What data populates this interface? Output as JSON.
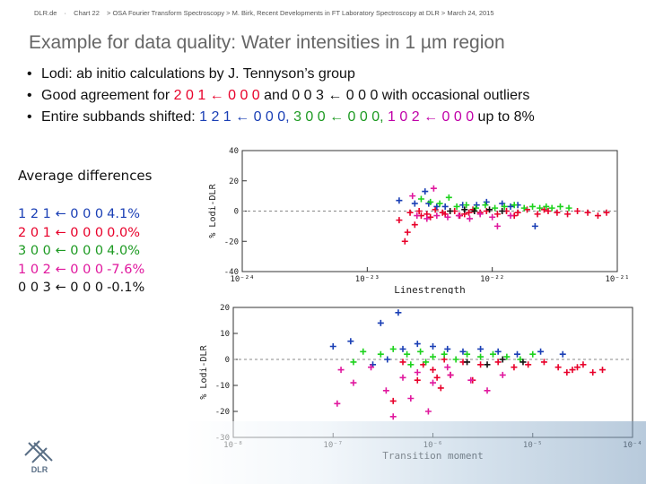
{
  "header": {
    "org": "DLR.de",
    "chart": "Chart 22",
    "source": "> OSA Fourier Transform Spectroscopy > M. Birk, Recent Developments in FT Laboratory Spectroscopy at DLR > March 24, 2015"
  },
  "title": "Example for data quality: Water intensities in 1 µm region",
  "bullets": [
    {
      "parts": [
        {
          "text": "Lodi: ab initio calculations by J. Tennyson’s group",
          "color": ""
        }
      ]
    },
    {
      "parts": [
        {
          "text": "Good agreement for ",
          "color": ""
        },
        {
          "text": "2 0 1 ← 0 0 0",
          "color": "red"
        },
        {
          "text": " and 0 0 3 ← 0 0 0 with occasional outliers",
          "color": ""
        }
      ]
    },
    {
      "parts": [
        {
          "text": "Entire subbands shifted: ",
          "color": ""
        },
        {
          "text": "1 2 1 ← 0 0 0,",
          "color": "blue"
        },
        {
          "text": "  ",
          "color": ""
        },
        {
          "text": "3 0 0 ← 0 0 0,",
          "color": "green"
        },
        {
          "text": "  ",
          "color": ""
        },
        {
          "text": "1 0 2 ← 0 0 0",
          "color": "magenta"
        },
        {
          "text": "  up to 8%",
          "color": ""
        }
      ]
    }
  ],
  "average": {
    "title": "Average differences",
    "rows": [
      {
        "band": "1 2 1 ← 0 0 0",
        "value": "4.1%",
        "color": "blue"
      },
      {
        "band": "2 0 1 ← 0 0 0",
        "value": "0.0%",
        "color": "red"
      },
      {
        "band": "3 0 0 ← 0 0 0",
        "value": "4.0%",
        "color": "green"
      },
      {
        "band": "1 0 2 ← 0 0 0",
        "value": "-7.6%",
        "color": "magenta"
      },
      {
        "band": "0 0 3 ← 0 0 0",
        "value": "-0.1%",
        "color": "black"
      }
    ]
  },
  "colors": {
    "red": "#e8002a",
    "blue": "#1a3fb5",
    "green": "#1dd21d",
    "magenta": "#e0189e",
    "black": "#111111"
  },
  "chart_data": [
    {
      "type": "scatter",
      "xlabel": "Linestrength",
      "ylabel": "% Lodi-DLR",
      "xscale": "log",
      "xlim": [
        1e-24,
        1e-21
      ],
      "ylim": [
        -40,
        40
      ],
      "xticks": [
        "10⁻²⁴",
        "10⁻²³",
        "10⁻²²",
        "10⁻²¹"
      ],
      "yticks": [
        "-40",
        "-20",
        "0",
        "20",
        "40"
      ],
      "series": [
        {
          "color": "red",
          "points": [
            [
              2.2e-23,
              -1
            ],
            [
              2.6e-23,
              0
            ],
            [
              3e-23,
              -2
            ],
            [
              3.5e-23,
              1
            ],
            [
              4e-23,
              -1
            ],
            [
              5e-23,
              0
            ],
            [
              6e-23,
              -2
            ],
            [
              7e-23,
              1
            ],
            [
              8e-23,
              -1
            ],
            [
              9e-23,
              0
            ],
            [
              1.1e-22,
              -2
            ],
            [
              1.3e-22,
              0
            ],
            [
              1.6e-22,
              -1
            ],
            [
              1.9e-22,
              1
            ],
            [
              2.3e-22,
              -2
            ],
            [
              2.8e-22,
              0
            ],
            [
              3.3e-22,
              -1
            ],
            [
              4e-22,
              -2
            ],
            [
              4.8e-22,
              0
            ],
            [
              5.8e-22,
              -1
            ],
            [
              7e-22,
              -3
            ],
            [
              8.2e-22,
              -1
            ],
            [
              1.8e-23,
              -6
            ],
            [
              2.1e-23,
              -14
            ],
            [
              2.4e-23,
              -9
            ],
            [
              2e-23,
              -20
            ],
            [
              2.7e-23,
              -3
            ],
            [
              3.2e-23,
              -4
            ],
            [
              4.2e-23,
              -2
            ],
            [
              5.5e-23,
              -3
            ],
            [
              6.5e-23,
              -1
            ],
            [
              2.6e-22,
              1
            ],
            [
              1.5e-22,
              -3
            ]
          ]
        },
        {
          "color": "blue",
          "points": [
            [
              1.8e-23,
              7
            ],
            [
              2.4e-23,
              5
            ],
            [
              3.1e-23,
              5
            ],
            [
              4.2e-23,
              3
            ],
            [
              5.8e-23,
              4
            ],
            [
              7.5e-23,
              4
            ],
            [
              9e-23,
              6
            ],
            [
              1.2e-22,
              5
            ],
            [
              1.6e-22,
              4
            ],
            [
              2.2e-22,
              -10
            ],
            [
              2.9e-23,
              13
            ],
            [
              3.6e-23,
              3
            ],
            [
              1.4e-22,
              3
            ]
          ]
        },
        {
          "color": "green",
          "points": [
            [
              2.7e-23,
              8
            ],
            [
              3.2e-23,
              6
            ],
            [
              3.8e-23,
              5
            ],
            [
              4.5e-23,
              9
            ],
            [
              5.2e-23,
              3
            ],
            [
              6.2e-23,
              4
            ],
            [
              7.4e-23,
              2
            ],
            [
              8.8e-23,
              4
            ],
            [
              1.05e-22,
              2
            ],
            [
              1.25e-22,
              3
            ],
            [
              1.5e-22,
              4
            ],
            [
              1.8e-22,
              2
            ],
            [
              2.1e-22,
              3
            ],
            [
              2.4e-22,
              2
            ],
            [
              2.7e-22,
              3
            ],
            [
              3e-22,
              2
            ],
            [
              3.5e-22,
              3
            ],
            [
              4.1e-22,
              2
            ]
          ]
        },
        {
          "color": "magenta",
          "points": [
            [
              2.5e-23,
              -3
            ],
            [
              3e-23,
              -5
            ],
            [
              3.6e-23,
              -3
            ],
            [
              4.4e-23,
              -4
            ],
            [
              5.4e-23,
              -3
            ],
            [
              6.6e-23,
              -5
            ],
            [
              8e-23,
              -2
            ],
            [
              1e-22,
              -4
            ],
            [
              1.4e-22,
              -3
            ],
            [
              1.1e-22,
              -10
            ],
            [
              2.3e-23,
              10
            ],
            [
              3.4e-23,
              15
            ]
          ]
        },
        {
          "color": "black",
          "points": [
            [
              4.6e-23,
              0
            ],
            [
              6e-23,
              1
            ],
            [
              7.2e-23,
              0
            ],
            [
              9.5e-23,
              1
            ],
            [
              1.2e-22,
              0
            ]
          ]
        }
      ]
    },
    {
      "type": "scatter",
      "xlabel": "Transition moment",
      "ylabel": "% Lodi-DLR",
      "xscale": "log",
      "xlim": [
        1e-08,
        0.0001
      ],
      "ylim": [
        -30,
        20
      ],
      "xticks": [
        "10⁻⁸",
        "10⁻⁷",
        "10⁻⁶",
        "10⁻⁵",
        "10⁻⁴"
      ],
      "yticks": [
        "-30",
        "-20",
        "-10",
        "0",
        "10",
        "20"
      ],
      "series": [
        {
          "color": "red",
          "points": [
            [
              5e-07,
              -1
            ],
            [
              8e-07,
              -2
            ],
            [
              1.3e-06,
              0
            ],
            [
              2e-06,
              -1
            ],
            [
              3e-06,
              -2
            ],
            [
              4.5e-06,
              -1
            ],
            [
              6.5e-06,
              -3
            ],
            [
              9e-06,
              -2
            ],
            [
              1.3e-05,
              -1
            ],
            [
              1.8e-05,
              -3
            ],
            [
              2.5e-05,
              -4
            ],
            [
              3.2e-05,
              -2
            ],
            [
              4e-05,
              -5
            ],
            [
              5e-05,
              -4
            ],
            [
              1.5e-06,
              -6
            ],
            [
              2.5e-06,
              -8
            ],
            [
              1e-06,
              -4
            ],
            [
              7e-07,
              -8
            ],
            [
              4e-07,
              -16
            ],
            [
              1.1e-06,
              -7
            ],
            [
              2.2e-05,
              -5
            ],
            [
              2.8e-05,
              -3
            ],
            [
              1.2e-06,
              -11
            ]
          ]
        },
        {
          "color": "blue",
          "points": [
            [
              1.5e-07,
              7
            ],
            [
              2.5e-07,
              -2
            ],
            [
              3.5e-07,
              0
            ],
            [
              5e-07,
              4
            ],
            [
              7e-07,
              6
            ],
            [
              1e-06,
              5
            ],
            [
              1.4e-06,
              4
            ],
            [
              2e-06,
              3
            ],
            [
              3e-06,
              4
            ],
            [
              4.5e-06,
              3
            ],
            [
              7e-06,
              2
            ],
            [
              1.2e-05,
              3
            ],
            [
              2e-05,
              2
            ],
            [
              4.5e-07,
              18
            ],
            [
              3e-07,
              14
            ],
            [
              1e-07,
              5
            ]
          ]
        },
        {
          "color": "green",
          "points": [
            [
              2e-07,
              3
            ],
            [
              3e-07,
              2
            ],
            [
              4e-07,
              4
            ],
            [
              5.5e-07,
              2
            ],
            [
              7.5e-07,
              3
            ],
            [
              1e-06,
              1
            ],
            [
              1.3e-06,
              2
            ],
            [
              1.7e-06,
              0
            ],
            [
              2.2e-06,
              2
            ],
            [
              3e-06,
              1
            ],
            [
              4e-06,
              2
            ],
            [
              5.5e-06,
              1
            ],
            [
              7.5e-06,
              0
            ],
            [
              1e-05,
              2
            ],
            [
              1.6e-07,
              -1
            ],
            [
              6e-07,
              -2
            ],
            [
              8.5e-07,
              -1
            ]
          ]
        },
        {
          "color": "magenta",
          "points": [
            [
              1.2e-07,
              -4
            ],
            [
              1.6e-07,
              -9
            ],
            [
              2.4e-07,
              -3
            ],
            [
              3.4e-07,
              -12
            ],
            [
              5e-07,
              -7
            ],
            [
              7e-07,
              -5
            ],
            [
              1e-06,
              -9
            ],
            [
              1.5e-06,
              -6
            ],
            [
              2.4e-06,
              -8
            ],
            [
              3.5e-06,
              -12
            ],
            [
              5e-06,
              -6
            ],
            [
              1.1e-07,
              -17
            ],
            [
              4e-07,
              -22
            ],
            [
              6e-07,
              -15
            ],
            [
              9e-07,
              -20
            ],
            [
              1.4e-06,
              -3
            ]
          ]
        },
        {
          "color": "black",
          "points": [
            [
              2.2e-06,
              -1
            ],
            [
              3.5e-06,
              -2
            ],
            [
              5e-06,
              0
            ],
            [
              8e-06,
              -1
            ]
          ]
        }
      ]
    }
  ],
  "logo_text": "DLR"
}
